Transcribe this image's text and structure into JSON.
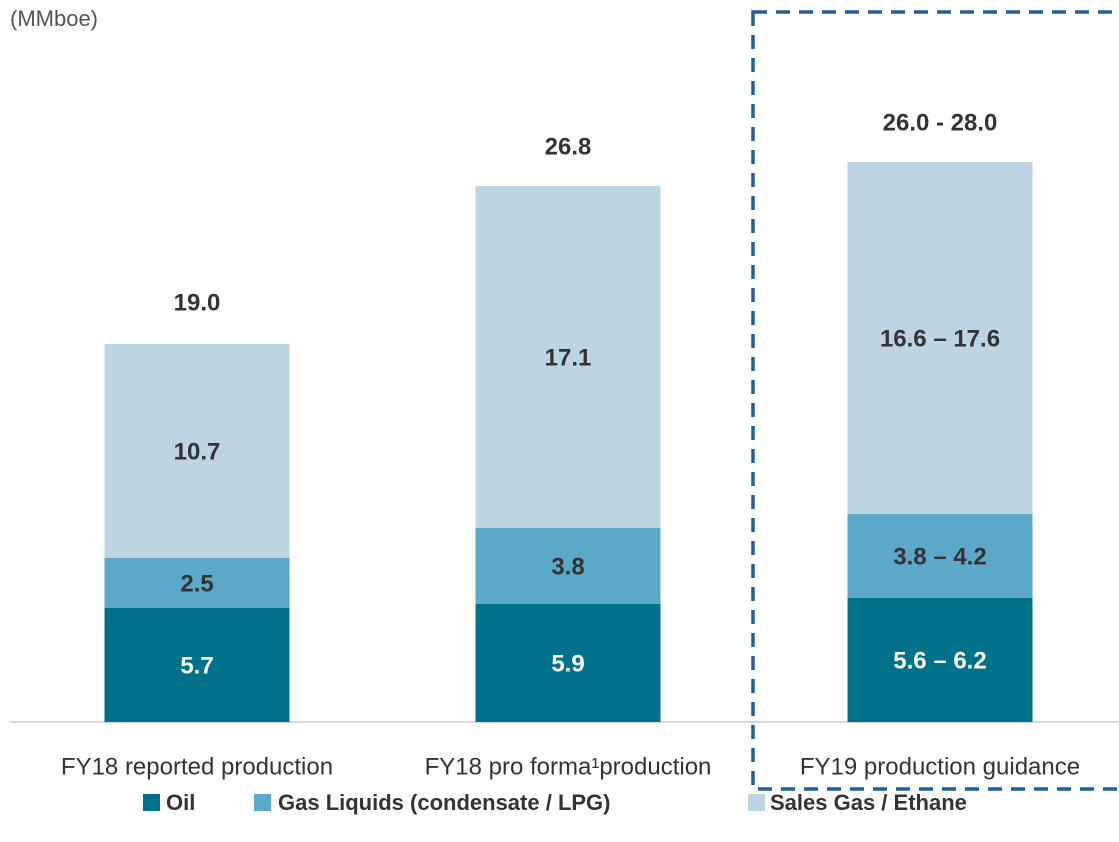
{
  "chart_data": {
    "type": "stacked_bar",
    "y_axis_label": "(MMboe)",
    "categories": [
      "FY18 reported production",
      "FY18 pro forma¹production",
      "FY19 production guidance"
    ],
    "series": [
      {
        "name": "Oil",
        "color": "#00718a",
        "label_color": "#ffffff",
        "values": [
          5.7,
          5.9,
          [
            5.6,
            6.2
          ]
        ],
        "value_labels": [
          "5.7",
          "5.9",
          "5.6 – 6.2"
        ]
      },
      {
        "name": "Gas Liquids (condensate / LPG)",
        "color": "#5ba8c8",
        "label_color": "#333333",
        "values": [
          2.5,
          3.8,
          [
            3.8,
            4.2
          ]
        ],
        "value_labels": [
          "2.5",
          "3.8",
          "3.8 – 4.2"
        ]
      },
      {
        "name": "Sales Gas / Ethane",
        "color": "#bdd5e2",
        "label_color": "#333333",
        "values": [
          10.7,
          17.1,
          [
            16.6,
            17.6
          ]
        ],
        "value_labels": [
          "10.7",
          "17.1",
          "16.6 – 17.6"
        ]
      }
    ],
    "totals": [
      19.0,
      26.8,
      [
        26.0,
        28.0
      ]
    ],
    "total_labels": [
      "19.0",
      "26.8",
      "26.0 - 28.0"
    ],
    "ylim": [
      0,
      30
    ]
  }
}
